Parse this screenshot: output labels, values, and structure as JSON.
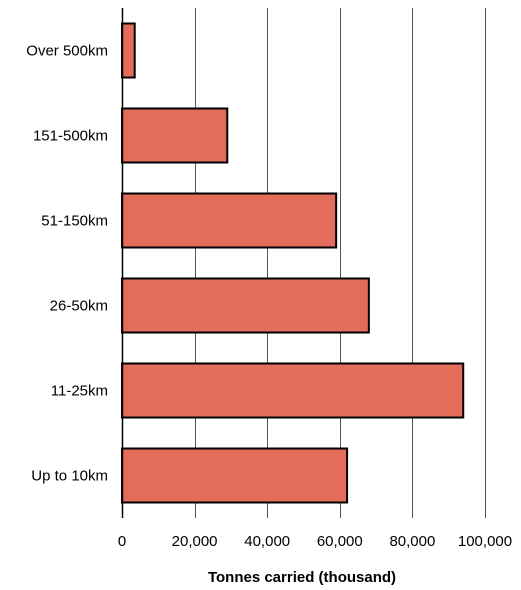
{
  "chart_data": {
    "type": "bar",
    "orientation": "horizontal",
    "categories": [
      "Over 500km",
      "151-500km",
      "51-150km",
      "26-50km",
      "11-25km",
      "Up to 10km"
    ],
    "values": [
      3500,
      29000,
      59000,
      68000,
      94000,
      62000
    ],
    "title": "",
    "xlabel": "Tonnes carried (thousand)",
    "ylabel": "",
    "xlim": [
      0,
      100000
    ],
    "xticks": [
      0,
      20000,
      40000,
      60000,
      80000,
      100000
    ],
    "xtick_labels": [
      "0",
      "20,000",
      "40,000",
      "60,000",
      "80,000",
      "100,000"
    ],
    "grid": "vertical",
    "legend": "none",
    "bar_color": "#e46c5b",
    "bar_edge_color": "#000000"
  }
}
